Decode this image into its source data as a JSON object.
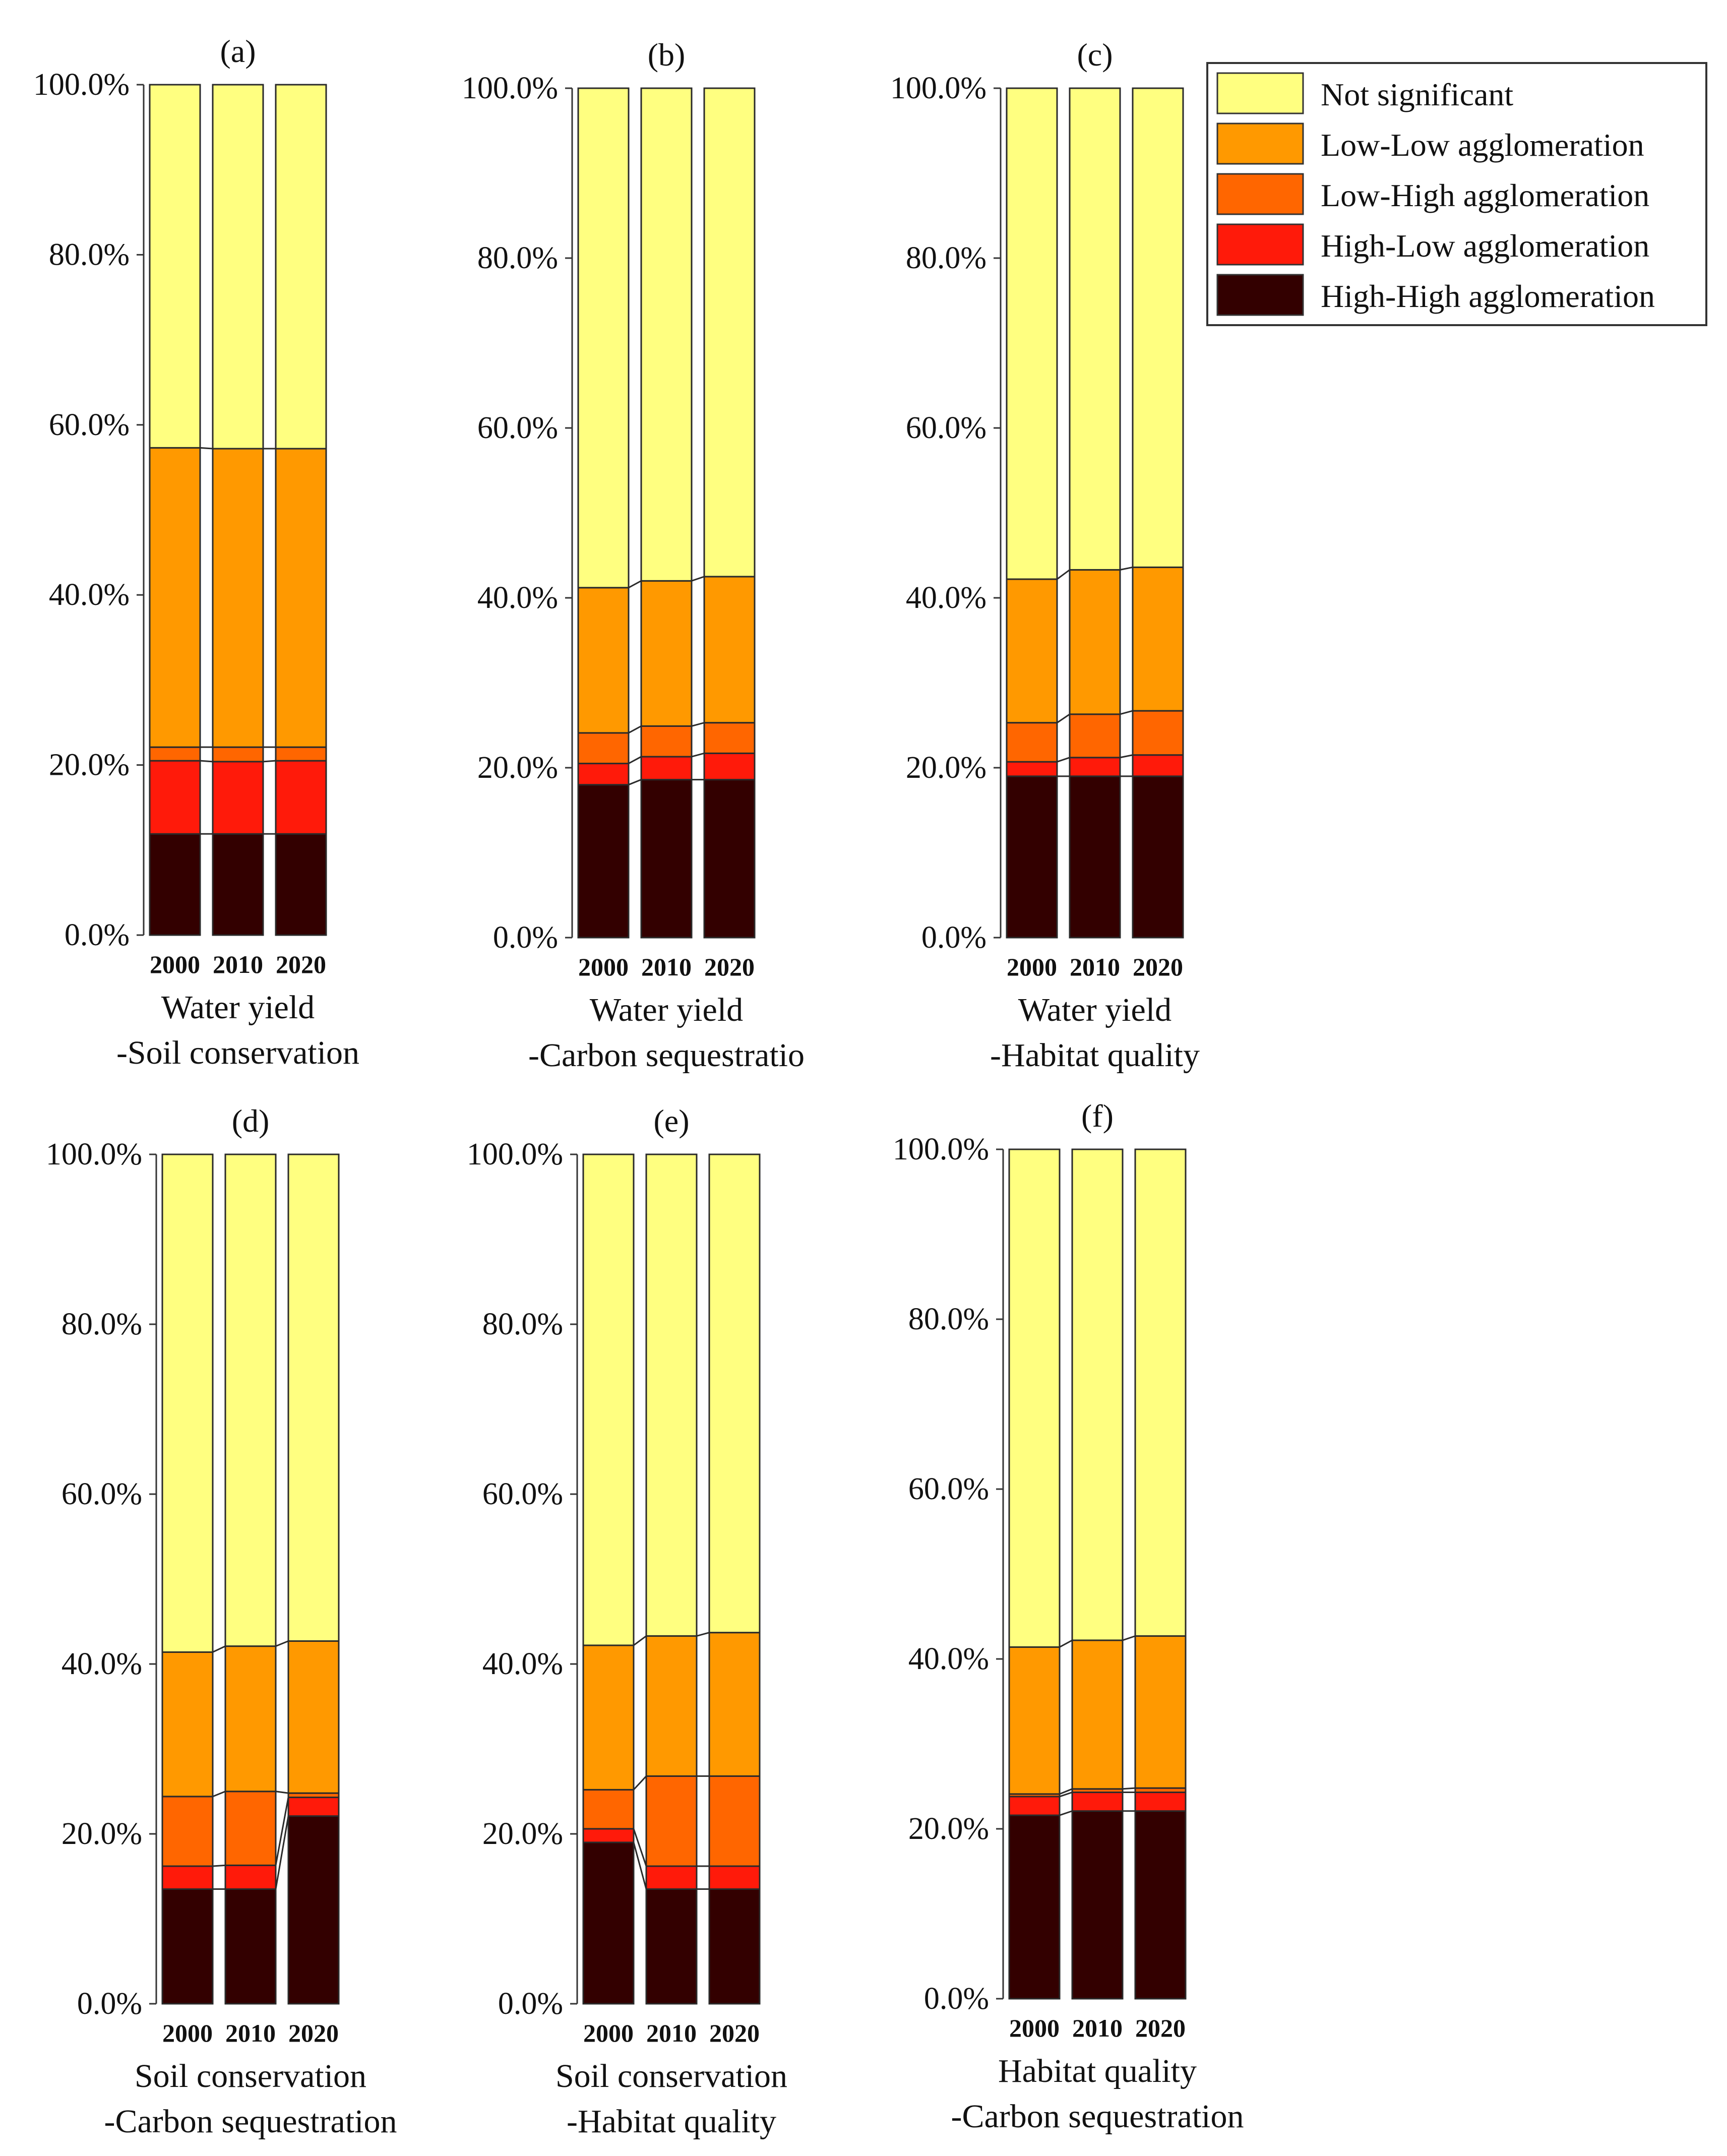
{
  "chart_data": {
    "type": "bar",
    "stacked": true,
    "y_ticks": [
      "0.0%",
      "20.0%",
      "40.0%",
      "60.0%",
      "80.0%",
      "100.0%"
    ],
    "ylim": [
      0,
      100
    ],
    "stack_order": [
      "High-High agglomeration",
      "High-Low agglomeration",
      "Low-High agglomeration",
      "Low-Low agglomeration",
      "Not significant"
    ],
    "legend": [
      {
        "name": "Not significant",
        "color": "#FFFF80"
      },
      {
        "name": "Low-Low agglomeration",
        "color": "#FF9900"
      },
      {
        "name": "Low-High agglomeration",
        "color": "#FF6600"
      },
      {
        "name": "High-Low agglomeration",
        "color": "#FF1A0A"
      },
      {
        "name": "High-High agglomeration",
        "color": "#330000"
      }
    ],
    "legend_position": "top-right",
    "panels": [
      {
        "label": "(a)",
        "caption": [
          "Water yield",
          "-Soil conservation"
        ],
        "categories": [
          "2000",
          "2010",
          "2020"
        ],
        "series": [
          {
            "name": "High-High agglomeration",
            "values": [
              11.9,
              11.9,
              11.9
            ]
          },
          {
            "name": "High-Low agglomeration",
            "values": [
              8.6,
              8.5,
              8.6
            ]
          },
          {
            "name": "Low-High agglomeration",
            "values": [
              1.6,
              1.7,
              1.6
            ]
          },
          {
            "name": "Low-Low agglomeration",
            "values": [
              35.2,
              35.1,
              35.1
            ]
          },
          {
            "name": "Not significant",
            "values": [
              42.7,
              42.8,
              42.8
            ]
          }
        ]
      },
      {
        "label": "(b)",
        "caption": [
          "Water yield",
          "-Carbon sequestratio"
        ],
        "categories": [
          "2000",
          "2010",
          "2020"
        ],
        "series": [
          {
            "name": "High-High agglomeration",
            "values": [
              18.0,
              18.6,
              18.6
            ]
          },
          {
            "name": "High-Low agglomeration",
            "values": [
              2.5,
              2.7,
              3.1
            ]
          },
          {
            "name": "Low-High agglomeration",
            "values": [
              3.6,
              3.6,
              3.6
            ]
          },
          {
            "name": "Low-Low agglomeration",
            "values": [
              17.1,
              17.1,
              17.2
            ]
          },
          {
            "name": "Not significant",
            "values": [
              58.8,
              58.0,
              57.5
            ]
          }
        ]
      },
      {
        "label": "(c)",
        "caption": [
          "Water yield",
          "-Habitat quality"
        ],
        "categories": [
          "2000",
          "2010",
          "2020"
        ],
        "series": [
          {
            "name": "High-High agglomeration",
            "values": [
              19.0,
              19.0,
              19.0
            ]
          },
          {
            "name": "High-Low agglomeration",
            "values": [
              1.7,
              2.2,
              2.5
            ]
          },
          {
            "name": "Low-High agglomeration",
            "values": [
              4.6,
              5.1,
              5.2
            ]
          },
          {
            "name": "Low-Low agglomeration",
            "values": [
              16.9,
              17.0,
              16.9
            ]
          },
          {
            "name": "Not significant",
            "values": [
              57.8,
              56.7,
              56.4
            ]
          }
        ]
      },
      {
        "label": "(d)",
        "caption": [
          "Soil conservation",
          "-Carbon sequestration"
        ],
        "categories": [
          "2000",
          "2010",
          "2020"
        ],
        "series": [
          {
            "name": "High-High agglomeration",
            "values": [
              13.5,
              13.5,
              22.1
            ]
          },
          {
            "name": "High-Low agglomeration",
            "values": [
              2.7,
              2.8,
              2.2
            ]
          },
          {
            "name": "Low-High agglomeration",
            "values": [
              8.2,
              8.7,
              0.5
            ]
          },
          {
            "name": "Low-Low agglomeration",
            "values": [
              17.0,
              17.1,
              17.9
            ]
          },
          {
            "name": "Not significant",
            "values": [
              58.6,
              57.9,
              57.3
            ]
          }
        ]
      },
      {
        "label": "(e)",
        "caption": [
          "Soil conservation",
          "-Habitat quality"
        ],
        "categories": [
          "2000",
          "2010",
          "2020"
        ],
        "series": [
          {
            "name": "High-High agglomeration",
            "values": [
              19.0,
              13.5,
              13.5
            ]
          },
          {
            "name": "High-Low agglomeration",
            "values": [
              1.6,
              2.7,
              2.7
            ]
          },
          {
            "name": "Low-High agglomeration",
            "values": [
              4.6,
              10.6,
              10.6
            ]
          },
          {
            "name": "Low-Low agglomeration",
            "values": [
              17.0,
              16.5,
              16.9
            ]
          },
          {
            "name": "Not significant",
            "values": [
              57.8,
              56.7,
              56.3
            ]
          }
        ]
      },
      {
        "label": "(f)",
        "caption": [
          "Habitat quality",
          "-Carbon sequestration"
        ],
        "categories": [
          "2000",
          "2010",
          "2020"
        ],
        "series": [
          {
            "name": "High-High agglomeration",
            "values": [
              21.6,
              22.1,
              22.1
            ]
          },
          {
            "name": "High-Low agglomeration",
            "values": [
              2.2,
              2.2,
              2.2
            ]
          },
          {
            "name": "Low-High agglomeration",
            "values": [
              0.3,
              0.4,
              0.5
            ]
          },
          {
            "name": "Low-Low agglomeration",
            "values": [
              17.3,
              17.5,
              17.9
            ]
          },
          {
            "name": "Not significant",
            "values": [
              58.6,
              57.8,
              57.3
            ]
          }
        ]
      }
    ]
  }
}
